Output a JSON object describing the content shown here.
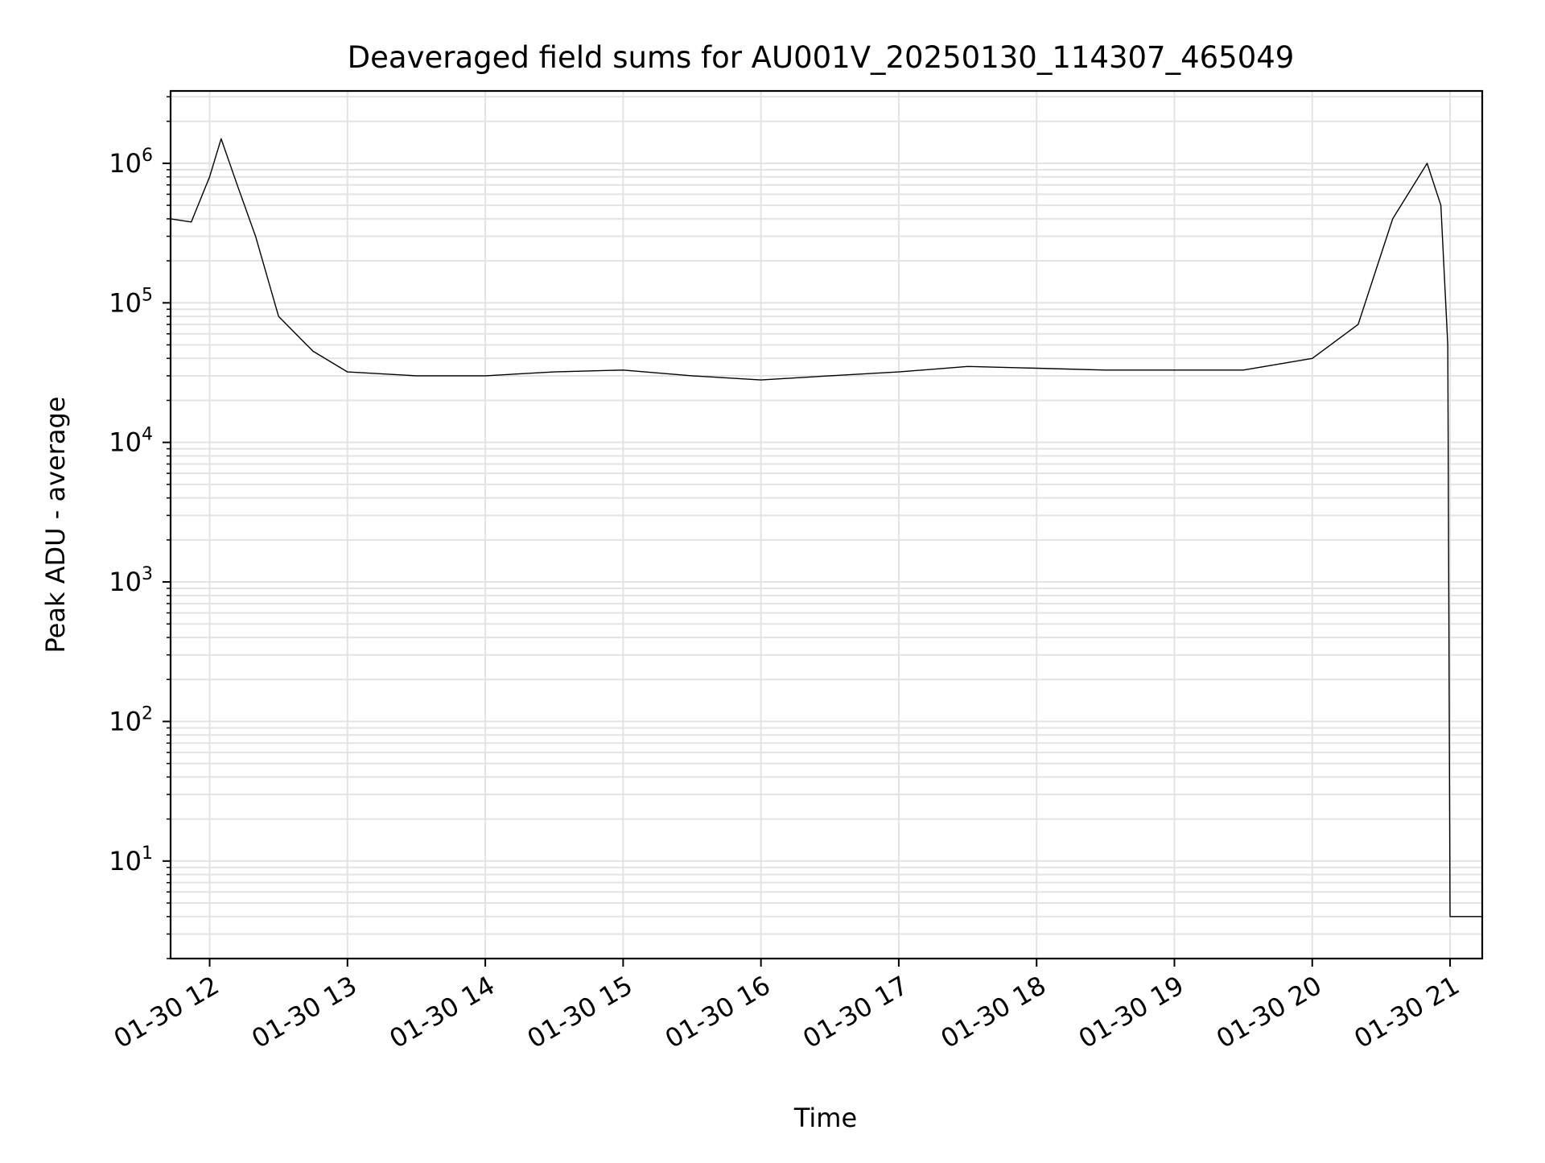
{
  "chart_data": {
    "type": "line",
    "title": "Deaveraged field sums for AU001V_20250130_114307_465049",
    "xlabel": "Time",
    "ylabel": "Peak ADU - average",
    "x_tick_labels": [
      "01-30 12",
      "01-30 13",
      "01-30 14",
      "01-30 15",
      "01-30 16",
      "01-30 17",
      "01-30 18",
      "01-30 19",
      "01-30 20",
      "01-30 21"
    ],
    "y_tick_labels": [
      {
        "base": "10",
        "exp": "1"
      },
      {
        "base": "10",
        "exp": "2"
      },
      {
        "base": "10",
        "exp": "3"
      },
      {
        "base": "10",
        "exp": "4"
      },
      {
        "base": "10",
        "exp": "5"
      },
      {
        "base": "10",
        "exp": "6"
      }
    ],
    "x_range": [
      "2025-01-30 11:43",
      "2025-01-30 21:14"
    ],
    "ylim": [
      2,
      3300000
    ],
    "yscale": "log",
    "grid": true,
    "line_color": "#000000",
    "series": [
      {
        "x": [
          "2025-01-30 11:43",
          "2025-01-30 11:52",
          "2025-01-30 12:00",
          "2025-01-30 12:05",
          "2025-01-30 12:12",
          "2025-01-30 12:20",
          "2025-01-30 12:30",
          "2025-01-30 12:45",
          "2025-01-30 13:00",
          "2025-01-30 13:30",
          "2025-01-30 14:00",
          "2025-01-30 14:30",
          "2025-01-30 15:00",
          "2025-01-30 15:30",
          "2025-01-30 16:00",
          "2025-01-30 16:30",
          "2025-01-30 17:00",
          "2025-01-30 17:30",
          "2025-01-30 18:00",
          "2025-01-30 18:30",
          "2025-01-30 19:00",
          "2025-01-30 19:30",
          "2025-01-30 20:00",
          "2025-01-30 20:20",
          "2025-01-30 20:35",
          "2025-01-30 20:50",
          "2025-01-30 20:56",
          "2025-01-30 20:59",
          "2025-01-30 21:00",
          "2025-01-30 21:14"
        ],
        "y": [
          400000,
          380000,
          800000,
          1500000,
          700000,
          300000,
          80000,
          45000,
          32000,
          30000,
          30000,
          32000,
          33000,
          30000,
          28000,
          30000,
          32000,
          35000,
          34000,
          33000,
          33000,
          33000,
          40000,
          70000,
          400000,
          1000000,
          500000,
          50000,
          4,
          4
        ]
      }
    ]
  }
}
